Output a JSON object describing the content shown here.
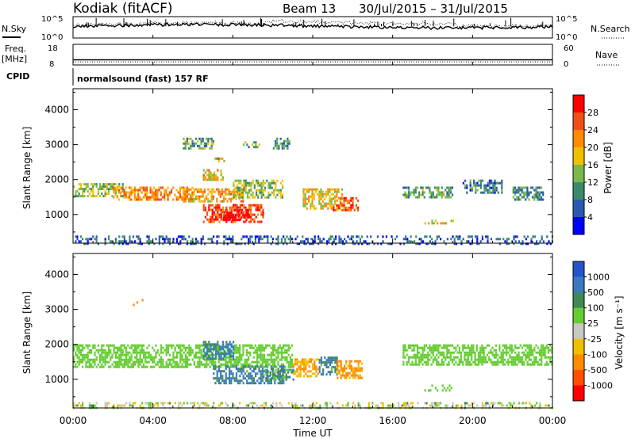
{
  "header": {
    "site": "Kodiak (fitACF)",
    "beam": "Beam 13",
    "dates": "30/Jul/2015 – 31/Jul/2015"
  },
  "strips": {
    "nsky_label": "N.Sky",
    "nsky_ticks": [
      "10^5",
      "10^0"
    ],
    "nsearch_label": "N.Search",
    "nsearch_ticks": [
      "10^5",
      "10^0"
    ],
    "freq_label_top": "Freq.",
    "freq_label_unit": "[MHz]",
    "freq_ticks": [
      "18",
      "8"
    ],
    "nave_label": "Nave",
    "nave_ticks": [
      "60",
      "0"
    ],
    "cpid_label": "CPID",
    "cpid_text": "normalsound (fast) 157 RF"
  },
  "panels": {
    "power": {
      "ylabel": "Slant Range [km]",
      "cbar_label": "Power [dB]",
      "cbar_ticks": [
        "28",
        "24",
        "20",
        "16",
        "12",
        "8",
        "4"
      ],
      "cbar_colors": [
        "#ff0000",
        "#f05018",
        "#ff8c00",
        "#f0c000",
        "#7ab84a",
        "#3c8a6a",
        "#2a5ab0",
        "#0000ff"
      ]
    },
    "velocity": {
      "ylabel": "Slant Range [km]",
      "cbar_label": "Velocity [m s⁻¹]",
      "cbar_ticks": [
        "1000",
        "500",
        "100",
        "25",
        "-25",
        "-100",
        "-500",
        "-1000"
      ],
      "cbar_colors": [
        "#2255cc",
        "#3a7ac0",
        "#3c8a55",
        "#66cc33",
        "#c8c8c0",
        "#f0c000",
        "#ff8c00",
        "#ff5000",
        "#ff0000"
      ]
    }
  },
  "axis": {
    "xlabel": "Time UT",
    "xticks": [
      "00:00",
      "04:00",
      "08:00",
      "12:00",
      "16:00",
      "20:00",
      "00:00"
    ],
    "yticks": [
      "1000",
      "2000",
      "3000",
      "4000"
    ]
  },
  "chart_data": {
    "type": "heatmap",
    "x_range_hours": [
      0,
      24
    ],
    "y_range_km": [
      180,
      4600
    ],
    "power_blobs": [
      {
        "t0": 0.0,
        "t1": 2.5,
        "r0": 1500,
        "r1": 1900,
        "level": 0.45
      },
      {
        "t0": 2.0,
        "t1": 6.0,
        "r0": 1400,
        "r1": 1800,
        "level": 0.7
      },
      {
        "t0": 5.5,
        "t1": 8.5,
        "r0": 1350,
        "r1": 1750,
        "level": 0.65
      },
      {
        "t0": 8.0,
        "t1": 10.5,
        "r0": 1500,
        "r1": 2000,
        "level": 0.45
      },
      {
        "t0": 6.5,
        "t1": 9.5,
        "r0": 800,
        "r1": 1300,
        "level": 0.85
      },
      {
        "t0": 7.5,
        "t1": 8.8,
        "r0": 850,
        "r1": 1150,
        "level": 1.0
      },
      {
        "t0": 11.5,
        "t1": 13.5,
        "r0": 1200,
        "r1": 1750,
        "level": 0.55
      },
      {
        "t0": 13.0,
        "t1": 14.3,
        "r0": 1100,
        "r1": 1500,
        "level": 0.75
      },
      {
        "t0": 16.5,
        "t1": 19.0,
        "r0": 1500,
        "r1": 1800,
        "level": 0.35
      },
      {
        "t0": 19.5,
        "t1": 21.5,
        "r0": 1650,
        "r1": 2000,
        "level": 0.25
      },
      {
        "t0": 22.0,
        "t1": 23.5,
        "r0": 1400,
        "r1": 1800,
        "level": 0.3
      },
      {
        "t0": 17.5,
        "t1": 19.0,
        "r0": 750,
        "r1": 850,
        "level": 0.55
      },
      {
        "t0": 6.5,
        "t1": 7.5,
        "r0": 2000,
        "r1": 2300,
        "level": 0.6
      },
      {
        "t0": 7.0,
        "t1": 7.6,
        "r0": 2500,
        "r1": 2700,
        "level": 0.5
      },
      {
        "t0": 5.5,
        "t1": 7.0,
        "r0": 2900,
        "r1": 3200,
        "level": 0.35
      },
      {
        "t0": 8.5,
        "t1": 9.5,
        "r0": 2950,
        "r1": 3100,
        "level": 0.4
      },
      {
        "t0": 10.0,
        "t1": 10.8,
        "r0": 2900,
        "r1": 3200,
        "level": 0.3
      },
      {
        "t0": 0.0,
        "t1": 24.0,
        "r0": 180,
        "r1": 400,
        "level": 0.2
      }
    ],
    "velocity_blobs": [
      {
        "t0": 0.0,
        "t1": 11.0,
        "r0": 1350,
        "r1": 2000,
        "vel": 0
      },
      {
        "t0": 6.5,
        "t1": 8.0,
        "r0": 1600,
        "r1": 2100,
        "vel": 150
      },
      {
        "t0": 7.0,
        "t1": 10.5,
        "r0": 900,
        "r1": 1400,
        "vel": 120
      },
      {
        "t0": 9.5,
        "t1": 11.0,
        "r0": 1000,
        "r1": 1300,
        "vel": 60
      },
      {
        "t0": 11.0,
        "t1": 12.3,
        "r0": 1100,
        "r1": 1600,
        "vel": -300
      },
      {
        "t0": 12.3,
        "t1": 13.2,
        "r0": 1150,
        "r1": 1650,
        "vel": 120
      },
      {
        "t0": 13.2,
        "t1": 14.5,
        "r0": 1050,
        "r1": 1550,
        "vel": -350
      },
      {
        "t0": 16.5,
        "t1": 24.0,
        "r0": 1400,
        "r1": 2000,
        "vel": 0
      },
      {
        "t0": 17.5,
        "t1": 19.0,
        "r0": 700,
        "r1": 850,
        "vel": 0
      },
      {
        "t0": 3.0,
        "t1": 3.5,
        "r0": 3150,
        "r1": 3300,
        "vel": -400
      },
      {
        "t0": 0.0,
        "t1": 24.0,
        "r0": 180,
        "r1": 350,
        "vel": -60
      }
    ],
    "nsky_series_level": 0.55,
    "freq_MHz": 10.5,
    "nave_level": 0.15
  }
}
